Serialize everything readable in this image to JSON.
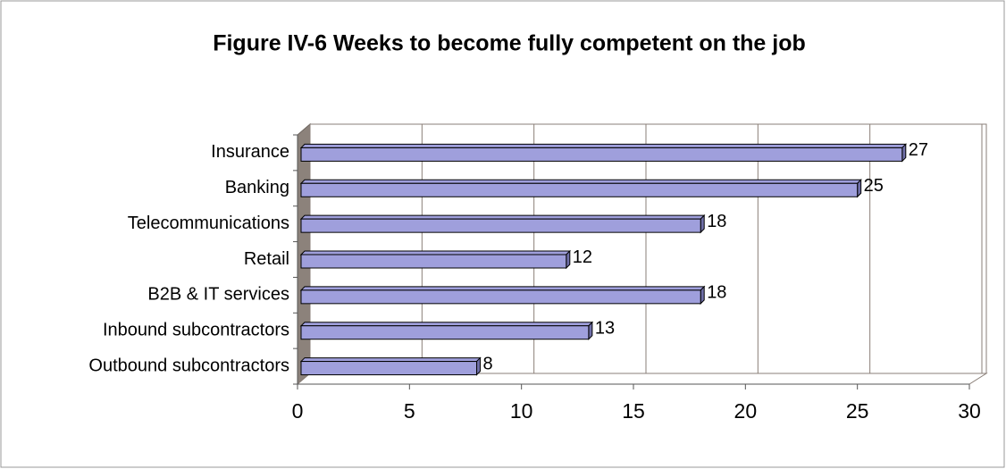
{
  "chart_data": {
    "type": "bar",
    "orientation": "horizontal",
    "title": "Figure IV-6 Weeks to become fully competent on the job",
    "categories": [
      "Insurance",
      "Banking",
      "Telecommunications",
      "Retail",
      "B2B & IT services",
      "Inbound subcontractors",
      "Outbound subcontractors"
    ],
    "values": [
      27,
      25,
      18,
      12,
      18,
      13,
      8
    ],
    "color": "#9f9fdc",
    "xlim": [
      0,
      30
    ],
    "xticks": [
      0,
      5,
      10,
      15,
      20,
      25,
      30
    ],
    "grid": true
  }
}
